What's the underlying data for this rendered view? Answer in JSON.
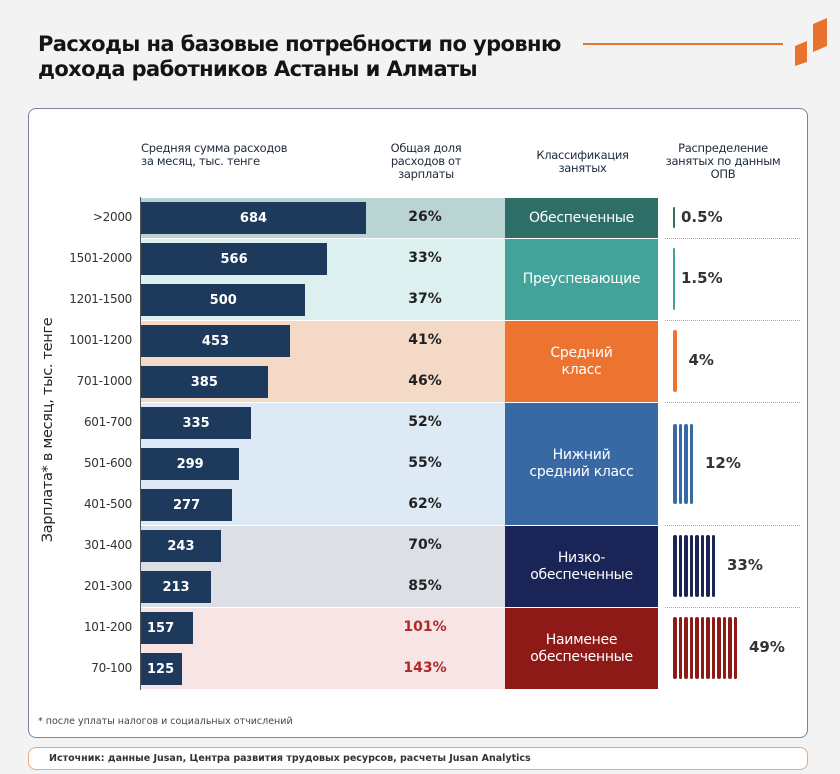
{
  "title": "Расходы на базовые потребности по уровню дохода работников Астаны и Алматы",
  "headers": {
    "spend": "Средняя сумма расходов за месяц, тыс. тенге",
    "share": "Общая доля расходов от зарплаты",
    "class": "Классификация занятых",
    "dist": "Распределение занятых по данным ОПВ"
  },
  "footnote": "* после уплаты налогов и социальных отчислений",
  "source": "Источник: данные Jusan, Центра развития трудовых ресурсов, расчеты Jusan Analytics",
  "colors": {
    "bar": "#1d3a5c",
    "accent": "#e8732f",
    "overspend": "#b02a2a"
  },
  "chart_data": {
    "type": "bar",
    "orientation": "horizontal",
    "ylabel": "Зарплата* в месяц, тыс. тенге",
    "categories": [
      ">2000",
      "1501-2000",
      "1201-1500",
      "1001-1200",
      "701-1000",
      "601-700",
      "501-600",
      "401-500",
      "301-400",
      "201-300",
      "101-200",
      "70-100"
    ],
    "values": [
      684,
      566,
      500,
      453,
      385,
      335,
      299,
      277,
      243,
      213,
      157,
      125
    ],
    "share": [
      "26%",
      "33%",
      "37%",
      "41%",
      "46%",
      "52%",
      "55%",
      "62%",
      "70%",
      "85%",
      "101%",
      "143%"
    ],
    "groups": [
      {
        "label": "Обеспеченные",
        "rows": 1,
        "dist": "0.5%",
        "dist_value": 0.5,
        "color": "#2e6e66",
        "band": "#bad3d3",
        "stripes": 0
      },
      {
        "label": "Преуспевающие",
        "rows": 2,
        "dist": "1.5%",
        "dist_value": 1.5,
        "color": "#42a39b",
        "band": "#dcf0ef",
        "stripes": 0
      },
      {
        "label": "Средний\nкласс",
        "rows": 2,
        "dist": "4%",
        "dist_value": 4,
        "color": "#ec7430",
        "band": "#f5d9c7",
        "stripes": 1
      },
      {
        "label": "Нижний\nсредний класс",
        "rows": 3,
        "dist": "12%",
        "dist_value": 12,
        "color": "#3869a5",
        "band": "#dde9f5",
        "stripes": 4
      },
      {
        "label": "Низко-\nобеспеченные",
        "rows": 2,
        "dist": "33%",
        "dist_value": 33,
        "color": "#1b2456",
        "band": "#dcdfe6",
        "stripes": 8
      },
      {
        "label": "Наименее\nобеспеченные",
        "rows": 2,
        "dist": "49%",
        "dist_value": 49,
        "color": "#8e1a17",
        "band": "#f7e4e4",
        "stripes": 12
      }
    ]
  }
}
